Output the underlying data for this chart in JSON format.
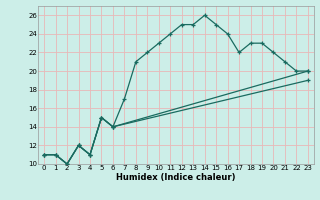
{
  "xlabel": "Humidex (Indice chaleur)",
  "xlim": [
    -0.5,
    23.5
  ],
  "ylim": [
    10,
    27
  ],
  "xtick_vals": [
    0,
    1,
    2,
    3,
    4,
    5,
    6,
    7,
    8,
    9,
    10,
    11,
    12,
    13,
    14,
    15,
    16,
    17,
    18,
    19,
    20,
    21,
    22,
    23
  ],
  "ytick_vals": [
    10,
    12,
    14,
    16,
    18,
    20,
    22,
    24,
    26
  ],
  "background_color": "#cceee8",
  "grid_color": "#e8b8b8",
  "line_color": "#1a6b60",
  "line1": {
    "x": [
      0,
      1,
      2,
      3,
      4,
      5,
      6,
      7,
      8,
      9,
      10,
      11,
      12,
      13,
      14,
      15,
      16,
      17,
      18,
      19,
      20,
      21,
      22,
      23
    ],
    "y": [
      11,
      11,
      10,
      12,
      11,
      15,
      14,
      17,
      21,
      22,
      23,
      24,
      25,
      25,
      26,
      25,
      24,
      22,
      23,
      23,
      22,
      21,
      20,
      20
    ]
  },
  "line2": {
    "x": [
      0,
      1,
      2,
      3,
      4,
      5,
      6,
      23
    ],
    "y": [
      11,
      11,
      10,
      12,
      11,
      15,
      14,
      20
    ]
  },
  "line3": {
    "x": [
      0,
      1,
      2,
      3,
      4,
      5,
      6,
      23
    ],
    "y": [
      11,
      11,
      10,
      12,
      11,
      15,
      14,
      19
    ]
  }
}
